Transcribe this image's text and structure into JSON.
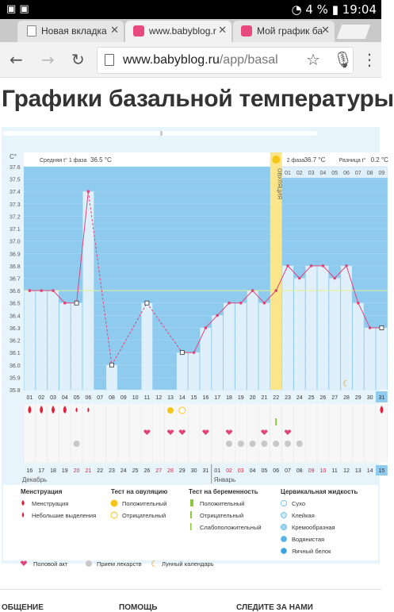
{
  "status": {
    "time": "19:04",
    "battery": "4 %"
  },
  "tabs": [
    {
      "label": "Новая вкладка",
      "close": "✕"
    },
    {
      "label": "www.babyblog.r",
      "close": "✕"
    },
    {
      "label": "Мой график ба",
      "close": "✕"
    }
  ],
  "url": {
    "host": "www.babyblog.ru",
    "path": "/app/basal"
  },
  "page": {
    "title": "Графики базальной температуры"
  },
  "chart_data": {
    "type": "line",
    "ylabel": "C°",
    "ylim": [
      35.8,
      37.6
    ],
    "yticks": [
      "37.6",
      "37.5",
      "37.4",
      "37.3",
      "37.2",
      "37.1",
      "37.0",
      "36.9",
      "36.8",
      "36.7",
      "36.6",
      "36.5",
      "36.4",
      "36.3",
      "36.2",
      "36.1",
      "36.0",
      "35.9",
      "35.8"
    ],
    "phase1_label": "Средняя t° 1 фаза",
    "phase1_value": "36.5 °С",
    "phase2_label": "2 фаза",
    "phase2_value": "36.7 °С",
    "diff_label": "Разница t°",
    "diff_value": "0.2 °С",
    "ovulation_label": "ОВУЛЯЦИЯ",
    "phase2_days": [
      "01",
      "02",
      "03",
      "04",
      "05",
      "06",
      "07",
      "08",
      "09"
    ],
    "days": [
      "01",
      "02",
      "03",
      "04",
      "05",
      "06",
      "07",
      "08",
      "09",
      "10",
      "11",
      "12",
      "13",
      "14",
      "15",
      "16",
      "17",
      "18",
      "19",
      "20",
      "21",
      "22",
      "23",
      "24",
      "25",
      "26",
      "27",
      "28",
      "29",
      "30",
      "31"
    ],
    "temps": [
      36.6,
      36.6,
      36.6,
      36.5,
      36.5,
      37.4,
      null,
      36.0,
      null,
      null,
      36.5,
      null,
      null,
      36.1,
      36.1,
      36.3,
      36.4,
      36.5,
      36.5,
      36.6,
      36.5,
      36.6,
      36.8,
      36.7,
      36.8,
      36.8,
      36.7,
      36.8,
      36.5,
      36.3,
      36.3
    ],
    "coverline": 36.6,
    "dates": [
      "16",
      "17",
      "18",
      "19",
      "20",
      "21",
      "22",
      "23",
      "24",
      "25",
      "26",
      "27",
      "28",
      "29",
      "30",
      "31",
      "01",
      "02",
      "03",
      "04",
      "05",
      "06",
      "07",
      "08",
      "09",
      "10",
      "11",
      "12",
      "13",
      "14",
      "15"
    ],
    "month_dec": "Декабрь",
    "month_jan": "Январь"
  },
  "legend": {
    "menstruation": {
      "title": "Менструация",
      "items": [
        "Менструация",
        "Небольшие выделения"
      ]
    },
    "ovulation_test": {
      "title": "Тест на овуляцию",
      "items": [
        "Положительный",
        "Отрицательный"
      ]
    },
    "pregnancy_test": {
      "title": "Тест на беременность",
      "items": [
        "Положительный",
        "Отрицательный",
        "Слабоположительный"
      ]
    },
    "cervical": {
      "title": "Цервикальная жидкость",
      "items": [
        "Сухо",
        "Клейкая",
        "Кремообразная",
        "Водянистая",
        "Яичный белок"
      ]
    },
    "bottom": [
      "Половой акт",
      "Прием лекарств",
      "Лунный календарь"
    ]
  },
  "footer": [
    "ОБЩЕНИЕ",
    "ПОМОЩЬ",
    "СЛЕДИТЕ ЗА НАМИ"
  ]
}
